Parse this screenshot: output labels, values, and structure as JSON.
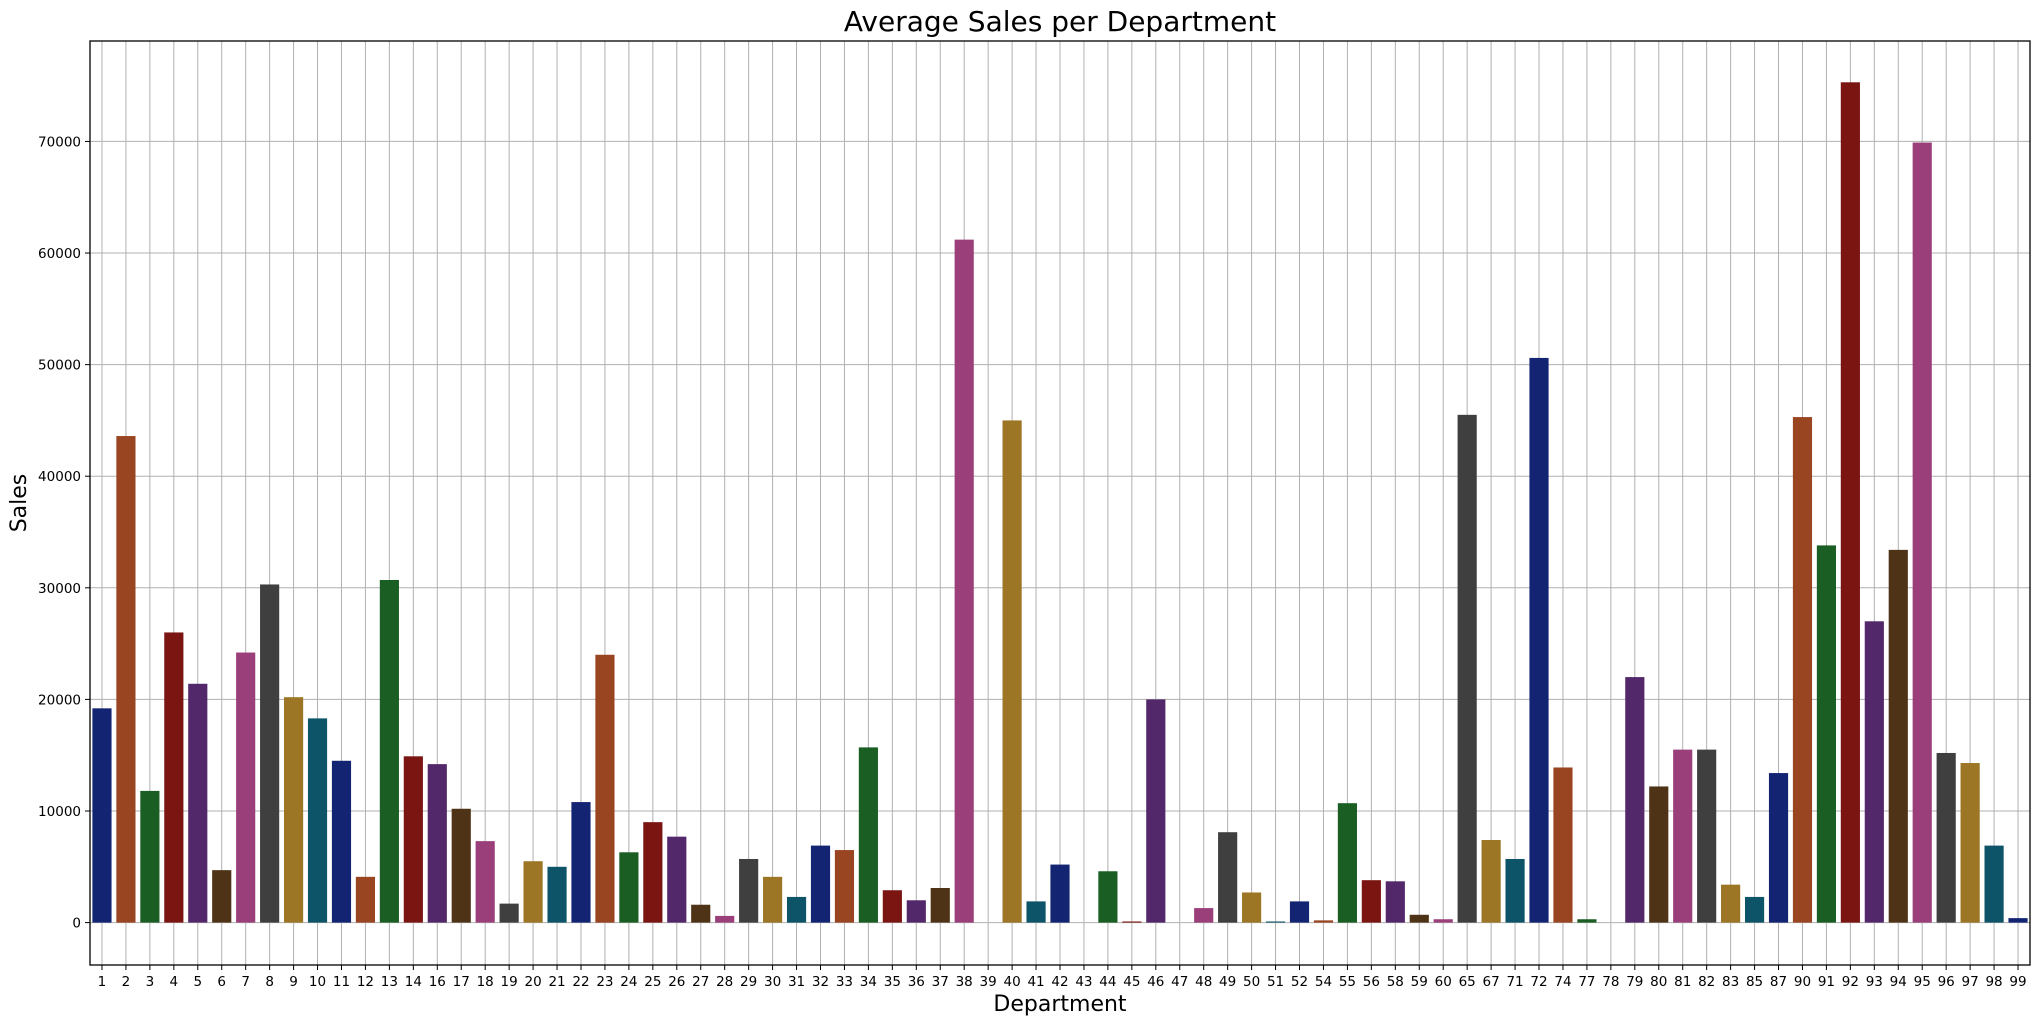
{
  "chart_data": {
    "type": "bar",
    "title": "Average Sales per Department",
    "xlabel": "Department",
    "ylabel": "Sales",
    "ylim": [
      -3800,
      79000
    ],
    "yticks": [
      0,
      10000,
      20000,
      30000,
      40000,
      50000,
      60000,
      70000
    ],
    "grid": true,
    "categories": [
      "1",
      "2",
      "3",
      "4",
      "5",
      "6",
      "7",
      "8",
      "9",
      "10",
      "11",
      "12",
      "13",
      "14",
      "16",
      "17",
      "18",
      "19",
      "20",
      "21",
      "22",
      "23",
      "24",
      "25",
      "26",
      "27",
      "28",
      "29",
      "30",
      "31",
      "32",
      "33",
      "34",
      "35",
      "36",
      "37",
      "38",
      "39",
      "40",
      "41",
      "42",
      "43",
      "44",
      "45",
      "46",
      "47",
      "48",
      "49",
      "50",
      "51",
      "52",
      "54",
      "55",
      "56",
      "58",
      "59",
      "60",
      "65",
      "67",
      "71",
      "72",
      "74",
      "77",
      "78",
      "79",
      "80",
      "81",
      "82",
      "83",
      "85",
      "87",
      "90",
      "91",
      "92",
      "93",
      "94",
      "95",
      "96",
      "97",
      "98",
      "99"
    ],
    "values": [
      19200,
      43600,
      11800,
      26000,
      21400,
      4700,
      24200,
      30300,
      20200,
      18300,
      14500,
      4100,
      30700,
      14900,
      14200,
      10200,
      7300,
      1700,
      5500,
      5000,
      10800,
      24000,
      6300,
      9000,
      7700,
      1600,
      600,
      5700,
      4100,
      2300,
      6900,
      6500,
      15700,
      2900,
      2000,
      3100,
      61200,
      0,
      45000,
      1900,
      5200,
      0,
      4600,
      100,
      20000,
      0,
      1300,
      8100,
      2700,
      100,
      1900,
      200,
      10700,
      3800,
      3700,
      700,
      300,
      45500,
      7400,
      5700,
      50600,
      13900,
      300,
      0,
      22000,
      12200,
      15500,
      15500,
      3400,
      2300,
      13400,
      45300,
      33800,
      75300,
      27000,
      33400,
      69900,
      15200,
      14300,
      6900,
      400
    ],
    "colors": [
      "#132472",
      "#9a4522",
      "#1a5e24",
      "#7a1512",
      "#52286a",
      "#4e3316",
      "#9a3f7a",
      "#3f3f3f",
      "#9c7624",
      "#0e5468"
    ]
  }
}
